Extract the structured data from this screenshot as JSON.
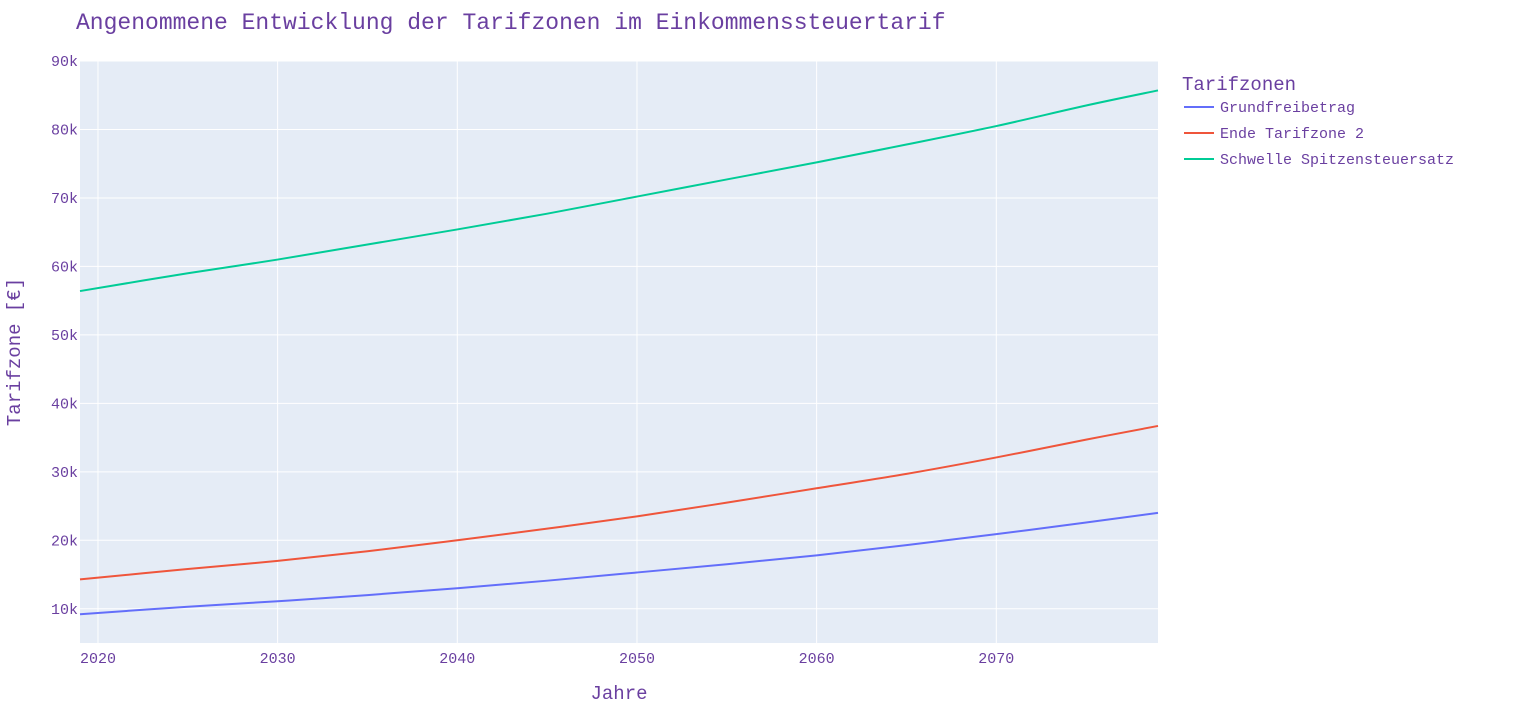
{
  "chart_data": {
    "type": "line",
    "title": "Angenommene Entwicklung der Tarifzonen im Einkommenssteuertarif",
    "xlabel": "Jahre",
    "ylabel": "Tarifzone [€]",
    "xlim": [
      2019,
      2079
    ],
    "ylim": [
      5000,
      90000
    ],
    "x_ticks": [
      2020,
      2030,
      2040,
      2050,
      2060,
      2070
    ],
    "x_tick_labels": [
      "2020",
      "2030",
      "2040",
      "2050",
      "2060",
      "2070"
    ],
    "y_ticks": [
      10000,
      20000,
      30000,
      40000,
      50000,
      60000,
      70000,
      80000,
      90000
    ],
    "y_tick_labels": [
      "10k",
      "20k",
      "30k",
      "40k",
      "50k",
      "60k",
      "70k",
      "80k",
      "90k"
    ],
    "grid": true,
    "plot_background": "#e5ecf6",
    "legend": {
      "title": "Tarifzonen",
      "placement": "top-right-outside"
    },
    "x": [
      2019,
      2025,
      2030,
      2035,
      2040,
      2045,
      2050,
      2055,
      2060,
      2065,
      2070,
      2075,
      2079
    ],
    "series": [
      {
        "name": "Grundfreibetrag",
        "color": "#636efa",
        "values": [
          9200,
          10300,
          11100,
          12000,
          13000,
          14100,
          15300,
          16500,
          17800,
          19300,
          20900,
          22600,
          24000
        ]
      },
      {
        "name": "Ende Tarifzone 2",
        "color": "#ef553b",
        "values": [
          14300,
          15800,
          17000,
          18400,
          20000,
          21700,
          23500,
          25500,
          27600,
          29700,
          32100,
          34700,
          36700
        ]
      },
      {
        "name": "Schwelle Spitzensteuersatz",
        "color": "#00cc96",
        "values": [
          56400,
          59000,
          61000,
          63200,
          65400,
          67700,
          70200,
          72700,
          75200,
          77800,
          80500,
          83500,
          85700
        ]
      }
    ]
  }
}
